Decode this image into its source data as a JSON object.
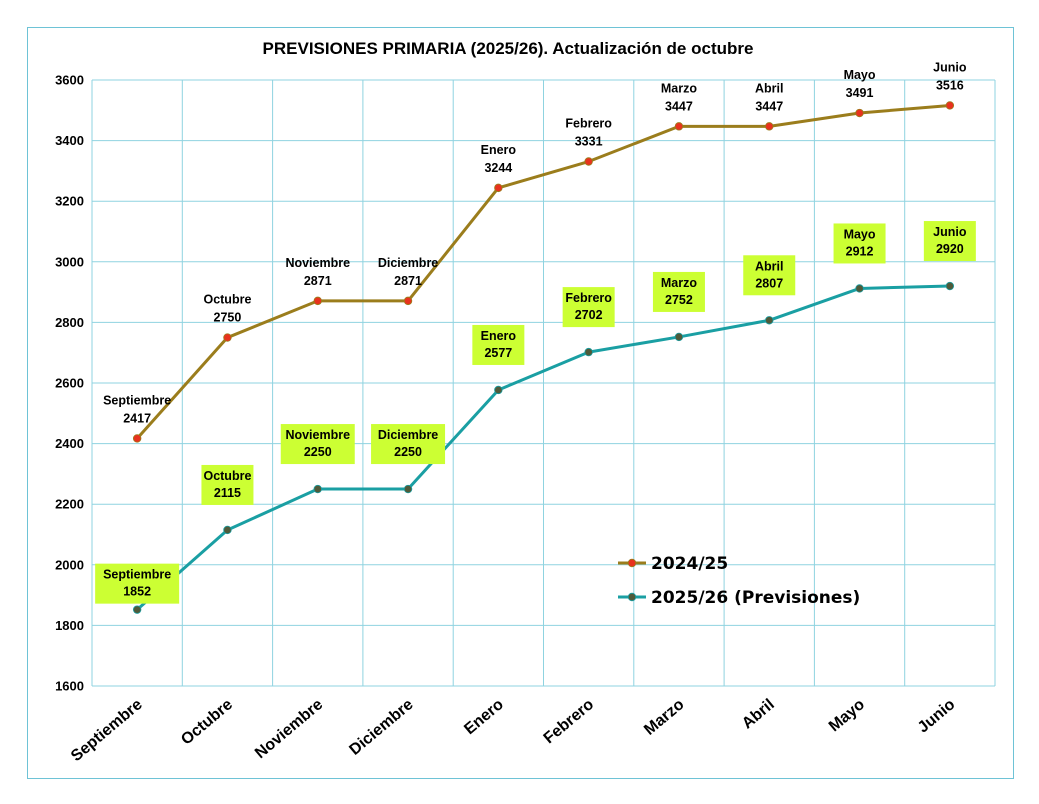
{
  "chart_data": {
    "type": "line",
    "title": "PREVISIONES PRIMARIA (2025/26). Actualización de octubre",
    "categories": [
      "Septiembre",
      "Octubre",
      "Noviembre",
      "Diciembre",
      "Enero",
      "Febrero",
      "Marzo",
      "Abril",
      "Mayo",
      "Junio"
    ],
    "ylim": [
      1600,
      3600
    ],
    "yticks": [
      1600,
      1800,
      2000,
      2200,
      2400,
      2600,
      2800,
      3000,
      3200,
      3400,
      3600
    ],
    "grid": true,
    "legend_position": "bottom-right",
    "series": [
      {
        "name": "2024/25",
        "values": [
          2417,
          2750,
          2871,
          2871,
          3244,
          3331,
          3447,
          3447,
          3491,
          3516
        ],
        "line_color": "#9b7d1c",
        "marker_color": "#e8321e",
        "label_style": "plain"
      },
      {
        "name": "2025/26 (Previsiones)",
        "values": [
          1852,
          2115,
          2250,
          2250,
          2577,
          2702,
          2752,
          2807,
          2912,
          2920
        ],
        "line_color": "#1a9fa3",
        "marker_color": "#4f5a3a",
        "label_style": "boxed",
        "label_bg": "#ccff33"
      }
    ]
  }
}
